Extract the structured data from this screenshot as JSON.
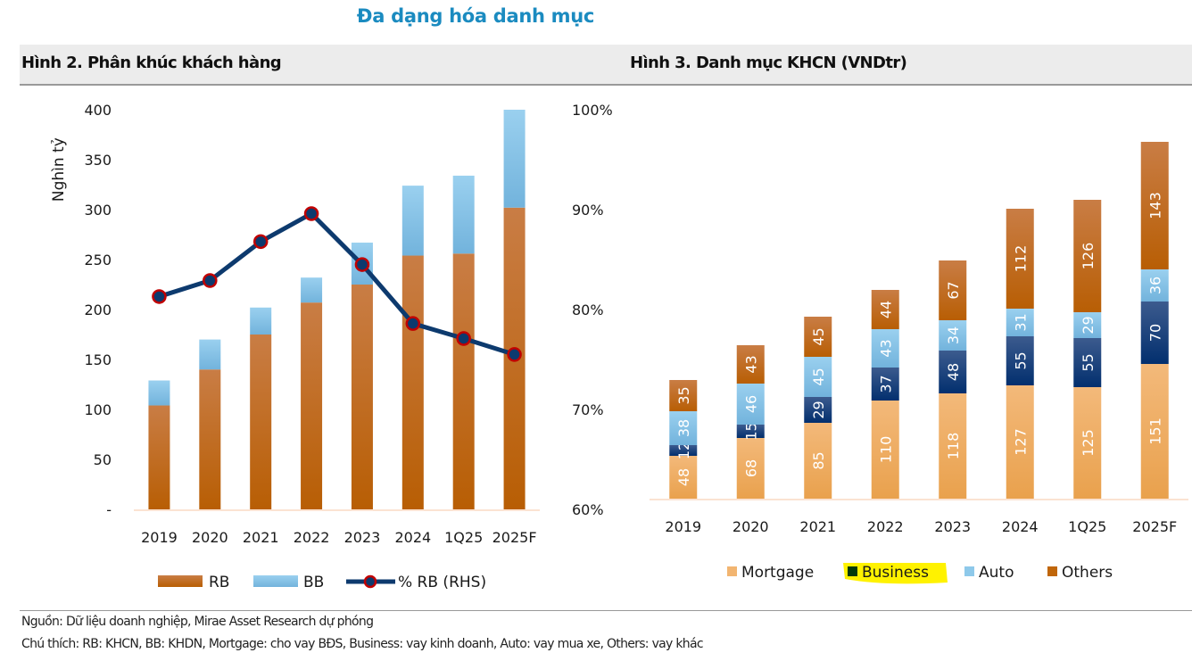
{
  "page": {
    "main_title": "Đa dạng hóa danh mục",
    "figure2_title": "Hình 2. Phân khúc khách hàng",
    "figure3_title": "Hình 3. Danh mục KHCN (VNDtr)",
    "source_note": "Nguồn: Dữ liệu doanh nghiệp, Mirae Asset Research dự phóng",
    "legend_note": "Chú thích: RB: KHCN, BB: KHDN, Mortgage: cho vay BĐS, Business: vay kinh doanh, Auto: vay mua xe, Others: vay khác"
  },
  "colors": {
    "title_blue": "#1b8bc0",
    "rb_orange": "#c0660a",
    "bb_blue": "#8cc8ea",
    "line_navy": "#0d3a6e",
    "marker_red": "#c00000",
    "mortgage": "#f2b571",
    "business": "#0a3570",
    "auto": "#8ec9ea",
    "others": "#c0660a",
    "highlight": "#fff200"
  },
  "chart_data": [
    {
      "type": "bar",
      "stacked": true,
      "title": "Hình 2. Phân khúc khách hàng",
      "categories": [
        "2019",
        "2020",
        "2021",
        "2022",
        "2023",
        "2024",
        "1Q25",
        "2025F"
      ],
      "ylabel": "Nghìn tỷ",
      "ylim": [
        0,
        400
      ],
      "yticks": [
        0,
        50,
        100,
        150,
        200,
        250,
        300,
        350,
        400
      ],
      "ytick_labels": [
        "-",
        "50",
        "100",
        "150",
        "200",
        "250",
        "300",
        "350",
        "400"
      ],
      "y2lim": [
        0.6,
        1.0
      ],
      "y2ticks": [
        0.6,
        0.7,
        0.8,
        0.9,
        1.0
      ],
      "y2tick_labels": [
        "60%",
        "70%",
        "80%",
        "90%",
        "100%"
      ],
      "series": [
        {
          "name": "RB",
          "kind": "bar",
          "values": [
            104,
            140,
            175,
            207,
            225,
            254,
            256,
            302
          ]
        },
        {
          "name": "BB",
          "kind": "bar",
          "values": [
            25,
            30,
            27,
            25,
            42,
            70,
            78,
            98
          ]
        },
        {
          "name": "% RB (RHS)",
          "kind": "line",
          "axis": "right",
          "values": [
            0.813,
            0.829,
            0.868,
            0.896,
            0.845,
            0.786,
            0.771,
            0.755
          ]
        }
      ],
      "legend": [
        "RB",
        "BB",
        "% RB (RHS)"
      ],
      "legend_position": "bottom",
      "grid": false
    },
    {
      "type": "bar",
      "stacked": true,
      "title": "Hình 3. Danh mục KHCN (VNDtr)",
      "categories": [
        "2019",
        "2020",
        "2021",
        "2022",
        "2023",
        "2024",
        "1Q25",
        "2025F"
      ],
      "series": [
        {
          "name": "Mortgage",
          "values": [
            48,
            68,
            85,
            110,
            118,
            127,
            125,
            151
          ]
        },
        {
          "name": "Business",
          "values": [
            12,
            15,
            29,
            37,
            48,
            55,
            55,
            70
          ]
        },
        {
          "name": "Auto",
          "values": [
            38,
            46,
            45,
            43,
            34,
            31,
            29,
            36
          ]
        },
        {
          "name": "Others",
          "values": [
            35,
            43,
            45,
            44,
            67,
            112,
            126,
            143
          ]
        }
      ],
      "data_labels": true,
      "legend": [
        "Mortgage",
        "Business",
        "Auto",
        "Others"
      ],
      "legend_position": "bottom",
      "legend_highlighted": "Business",
      "grid": false,
      "y_axis_visible": false
    }
  ]
}
